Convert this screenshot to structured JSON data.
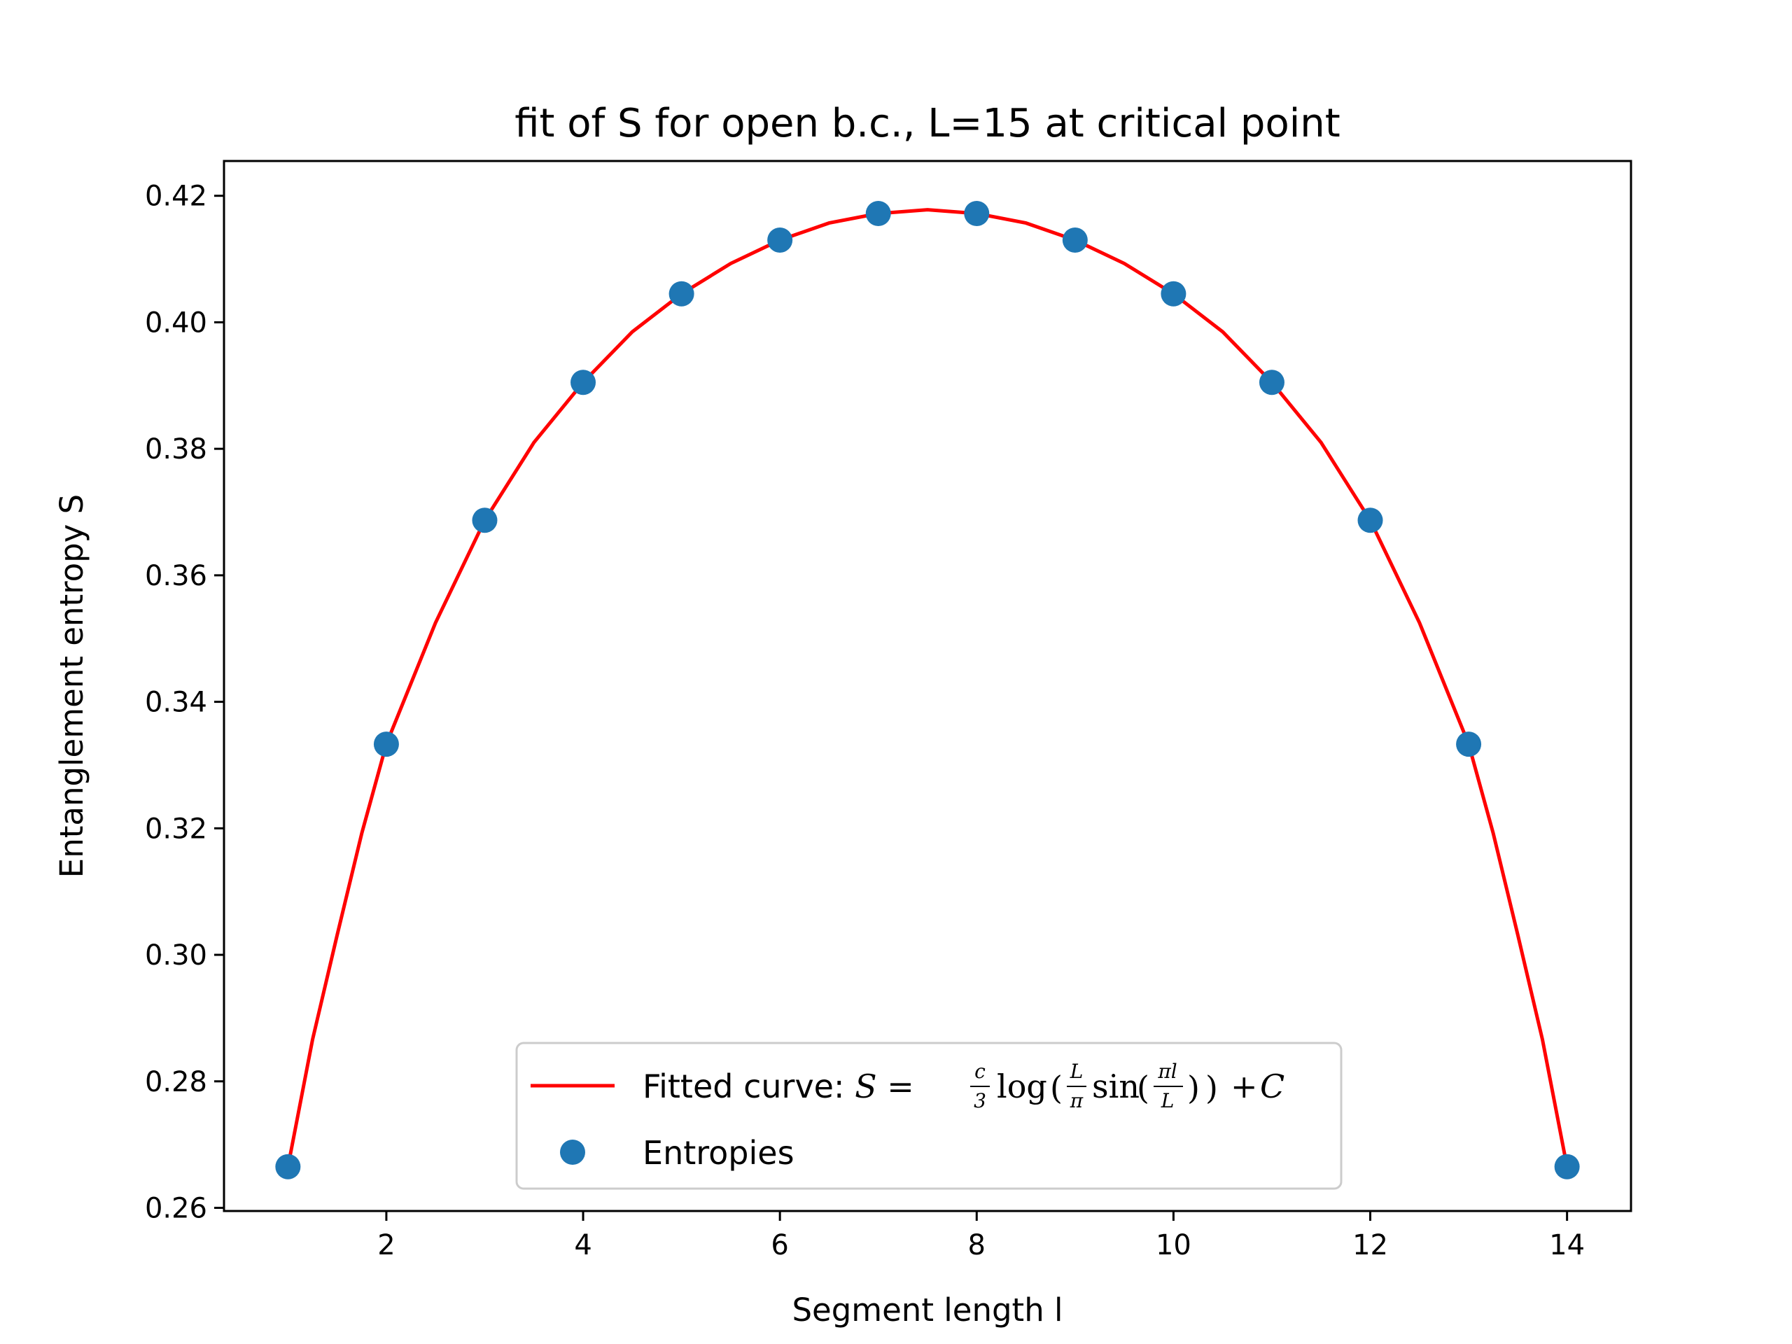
{
  "chart_data": {
    "type": "scatter",
    "title": "fit of S for open b.c., L=15 at critical point",
    "xlabel": "Segment length l",
    "ylabel": "Entanglement entropy S",
    "xlim": [
      0.35,
      14.65
    ],
    "ylim": [
      0.2595,
      0.4255
    ],
    "xticks": [
      2,
      4,
      6,
      8,
      10,
      12,
      14
    ],
    "yticks": [
      0.26,
      0.28,
      0.3,
      0.32,
      0.34,
      0.36,
      0.38,
      0.4,
      0.42
    ],
    "ytick_labels": [
      "0.26",
      "0.28",
      "0.30",
      "0.32",
      "0.34",
      "0.36",
      "0.38",
      "0.40",
      "0.42"
    ],
    "grid": false,
    "legend_position": "lower center",
    "series": [
      {
        "name": "Fitted curve: S = c/3 log(L/π sin(πl/L)) + C",
        "kind": "line",
        "color": "#ff0000",
        "x": [
          1.0,
          1.25,
          1.5,
          1.75,
          2.0,
          2.5,
          3.0,
          3.5,
          4.0,
          4.5,
          5.0,
          5.5,
          6.0,
          6.5,
          7.0,
          7.5,
          8.0,
          8.5,
          9.0,
          9.5,
          10.0,
          10.5,
          11.0,
          11.5,
          12.0,
          12.5,
          13.0,
          13.25,
          13.5,
          13.75,
          14.0
        ],
        "y": [
          0.2665,
          0.2866,
          0.3031,
          0.3192,
          0.3333,
          0.3525,
          0.3687,
          0.381,
          0.3905,
          0.3985,
          0.4045,
          0.4093,
          0.413,
          0.4157,
          0.4172,
          0.4178,
          0.4172,
          0.4157,
          0.413,
          0.4093,
          0.4045,
          0.3985,
          0.3905,
          0.381,
          0.3687,
          0.3525,
          0.3333,
          0.3192,
          0.3031,
          0.2866,
          0.2665
        ]
      },
      {
        "name": "Entropies",
        "kind": "scatter",
        "color": "#1f77b4",
        "x": [
          1,
          2,
          3,
          4,
          5,
          6,
          7,
          8,
          9,
          10,
          11,
          12,
          13,
          14
        ],
        "y": [
          0.2665,
          0.3333,
          0.3687,
          0.3905,
          0.4045,
          0.413,
          0.4172,
          0.4172,
          0.413,
          0.4045,
          0.3905,
          0.3687,
          0.3333,
          0.2665
        ]
      }
    ],
    "legend": {
      "fit_prefix": "Fitted curve: ",
      "points_label": "Entropies"
    }
  }
}
